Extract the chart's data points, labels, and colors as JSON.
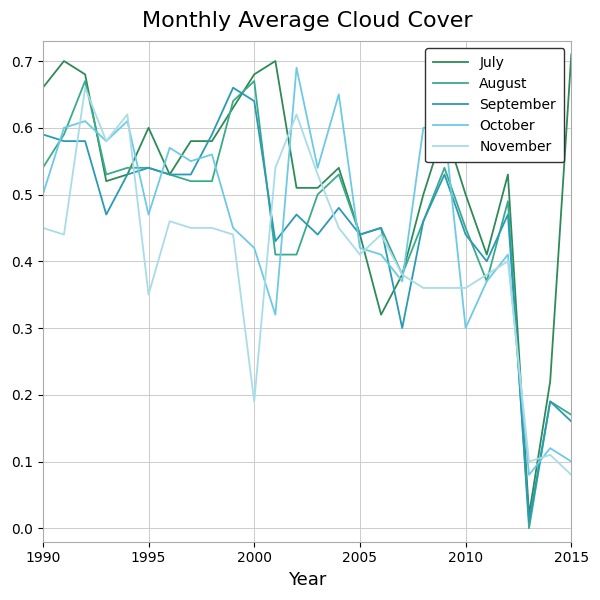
{
  "title": "Monthly Average Cloud Cover",
  "xlabel": "Year",
  "years": [
    1990,
    1991,
    1992,
    1993,
    1994,
    1995,
    1996,
    1997,
    1998,
    1999,
    2000,
    2001,
    2002,
    2003,
    2004,
    2005,
    2006,
    2007,
    2008,
    2009,
    2010,
    2011,
    2012,
    2013,
    2014,
    2015
  ],
  "july": [
    0.66,
    0.7,
    0.68,
    0.52,
    0.53,
    0.6,
    0.53,
    0.58,
    0.58,
    0.63,
    0.68,
    0.7,
    0.51,
    0.51,
    0.54,
    0.44,
    0.32,
    0.38,
    0.5,
    0.6,
    0.5,
    0.41,
    0.53,
    0.02,
    0.22,
    0.71
  ],
  "august": [
    0.54,
    0.59,
    0.67,
    0.53,
    0.54,
    0.54,
    0.53,
    0.52,
    0.52,
    0.64,
    0.67,
    0.41,
    0.41,
    0.5,
    0.53,
    0.44,
    0.45,
    0.38,
    0.46,
    0.54,
    0.45,
    0.37,
    0.49,
    0.0,
    0.19,
    0.17
  ],
  "september": [
    0.59,
    0.58,
    0.58,
    0.47,
    0.53,
    0.54,
    0.53,
    0.53,
    0.59,
    0.66,
    0.64,
    0.43,
    0.47,
    0.44,
    0.48,
    0.44,
    0.45,
    0.3,
    0.46,
    0.53,
    0.44,
    0.4,
    0.47,
    0.01,
    0.19,
    0.16
  ],
  "october": [
    0.5,
    0.6,
    0.61,
    0.58,
    0.61,
    0.47,
    0.57,
    0.55,
    0.56,
    0.45,
    0.42,
    0.32,
    0.69,
    0.54,
    0.65,
    0.42,
    0.41,
    0.37,
    0.6,
    0.6,
    0.3,
    0.37,
    0.41,
    0.08,
    0.12,
    0.1
  ],
  "november": [
    0.45,
    0.44,
    0.66,
    0.58,
    0.62,
    0.35,
    0.46,
    0.45,
    0.45,
    0.44,
    0.19,
    0.54,
    0.62,
    0.53,
    0.45,
    0.41,
    0.44,
    0.38,
    0.36,
    0.36,
    0.36,
    0.38,
    0.4,
    0.1,
    0.11,
    0.08
  ],
  "colors": {
    "july": "#2d8b57",
    "august": "#3aab8a",
    "september": "#2a9ab5",
    "october": "#6ecae4",
    "november": "#a8dce8"
  },
  "xlim": [
    1990,
    2015
  ],
  "ylim": [
    -0.02,
    0.73
  ],
  "yticks": [
    0.0,
    0.1,
    0.2,
    0.3,
    0.4,
    0.5,
    0.6,
    0.7
  ],
  "xticks": [
    1990,
    1995,
    2000,
    2005,
    2010,
    2015
  ],
  "title_fontsize": 16,
  "label_fontsize": 13,
  "tick_fontsize": 10,
  "legend_fontsize": 10,
  "linewidth": 1.3
}
